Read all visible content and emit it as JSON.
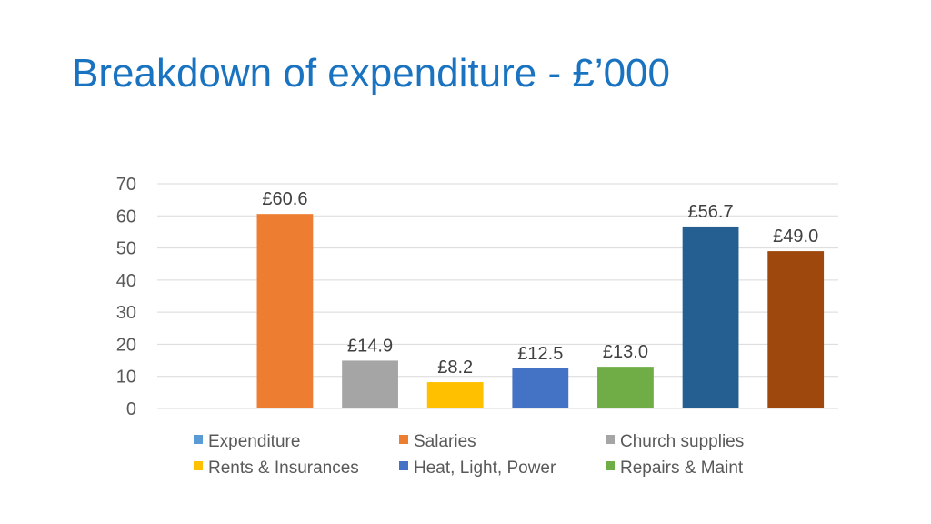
{
  "title": "Breakdown of expenditure - £’000",
  "chart_data": {
    "type": "bar",
    "title": "",
    "xlabel": "",
    "ylabel": "",
    "ylim": [
      0,
      70
    ],
    "yticks": [
      0,
      10,
      20,
      30,
      40,
      50,
      60,
      70
    ],
    "grid": true,
    "legend_position": "bottom",
    "series": [
      {
        "name": "Expenditure",
        "value": null,
        "label": "",
        "color": "#5b9bd5"
      },
      {
        "name": "Salaries",
        "value": 60.6,
        "label": "£60.6",
        "color": "#ed7d31"
      },
      {
        "name": "Church supplies",
        "value": 14.9,
        "label": "£14.9",
        "color": "#a5a5a5"
      },
      {
        "name": "Rents & Insurances",
        "value": 8.2,
        "label": "£8.2",
        "color": "#ffc000"
      },
      {
        "name": "Heat, Light, Power",
        "value": 12.5,
        "label": "£12.5",
        "color": "#4472c4"
      },
      {
        "name": "Repairs & Maint",
        "value": 13.0,
        "label": "£13.0",
        "color": "#70ad47"
      },
      {
        "name": "",
        "value": 56.7,
        "label": "£56.7",
        "color": "#255e91"
      },
      {
        "name": "",
        "value": 49.0,
        "label": "£49.0",
        "color": "#9e480e"
      }
    ],
    "legend": [
      {
        "label": "Expenditure",
        "color": "#5b9bd5"
      },
      {
        "label": "Salaries",
        "color": "#ed7d31"
      },
      {
        "label": "Church supplies",
        "color": "#a5a5a5"
      },
      {
        "label": "Rents & Insurances",
        "color": "#ffc000"
      },
      {
        "label": "Heat, Light, Power",
        "color": "#4472c4"
      },
      {
        "label": "Repairs & Maint",
        "color": "#70ad47"
      }
    ]
  }
}
